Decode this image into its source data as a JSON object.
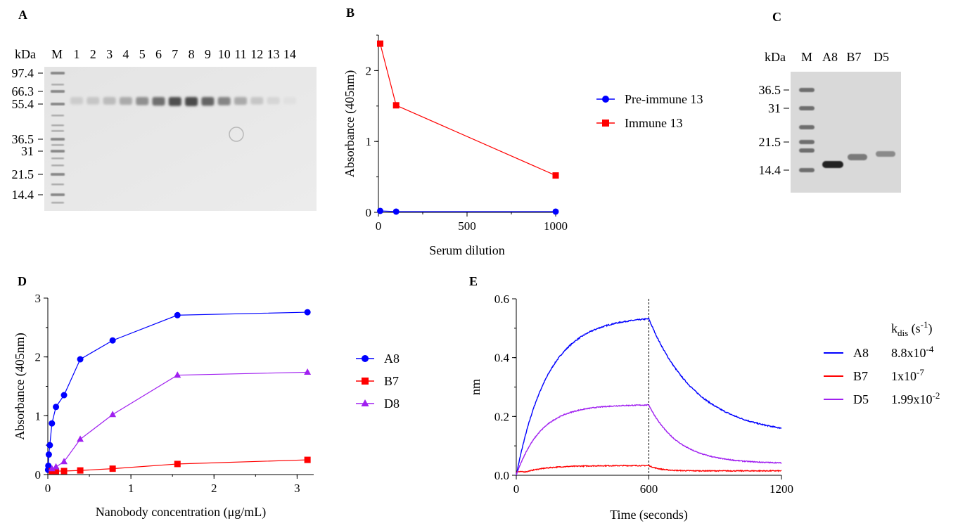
{
  "panel_labels": {
    "a": "A",
    "b": "B",
    "c": "C",
    "d": "D",
    "e": "E"
  },
  "gel_a": {
    "unit": "kDa",
    "marker_label": "M",
    "lanes": [
      "1",
      "2",
      "3",
      "4",
      "5",
      "6",
      "7",
      "8",
      "9",
      "10",
      "11",
      "12",
      "13",
      "14"
    ],
    "markers": [
      "97.4",
      "66.3",
      "55.4",
      "36.5",
      "31",
      "21.5",
      "14.4"
    ],
    "band_intensity": [
      0.12,
      0.15,
      0.2,
      0.28,
      0.4,
      0.55,
      0.7,
      0.72,
      0.6,
      0.45,
      0.28,
      0.15,
      0.08,
      0.03
    ]
  },
  "gel_c": {
    "unit": "kDa",
    "lanes": [
      "M",
      "A8",
      "B7",
      "D5"
    ],
    "markers": [
      "36.5",
      "31",
      "21.5",
      "14.4"
    ]
  },
  "chart_data": [
    {
      "id": "B",
      "type": "line",
      "xlabel": "Serum dilution",
      "ylabel": "Absorbance (405nm)",
      "xlim": [
        0,
        1000
      ],
      "ylim": [
        0,
        2.5
      ],
      "xticks": [
        "0",
        "500",
        "1000"
      ],
      "yticks": [
        "0",
        "1",
        "2"
      ],
      "legend_position": "right",
      "series": [
        {
          "name": "Pre-immune 13",
          "color": "#0000ff",
          "marker": "circle",
          "x": [
            10,
            100,
            1000
          ],
          "y": [
            0.02,
            0.01,
            0.01
          ]
        },
        {
          "name": "Immune 13",
          "color": "#ff0000",
          "marker": "square",
          "x": [
            10,
            100,
            1000
          ],
          "y": [
            2.38,
            1.51,
            0.52
          ]
        }
      ]
    },
    {
      "id": "D",
      "type": "line",
      "xlabel": "Nanobody concentration (μg/mL)",
      "ylabel": "Absorbance (405nm)",
      "xlim": [
        0,
        3.2
      ],
      "ylim": [
        0,
        3
      ],
      "xticks": [
        "0",
        "1",
        "2",
        "3"
      ],
      "yticks": [
        "0",
        "1",
        "2",
        "3"
      ],
      "legend_position": "right",
      "series": [
        {
          "name": "A8",
          "color": "#0000ff",
          "marker": "circle",
          "x": [
            0.003,
            0.006,
            0.012,
            0.024,
            0.049,
            0.098,
            0.195,
            0.39,
            0.78,
            1.56,
            3.125
          ],
          "y": [
            0.08,
            0.15,
            0.34,
            0.5,
            0.87,
            1.15,
            1.35,
            1.96,
            2.28,
            2.71,
            2.76
          ]
        },
        {
          "name": "B7",
          "color": "#ff0000",
          "marker": "square",
          "x": [
            0.049,
            0.098,
            0.195,
            0.39,
            0.78,
            1.56,
            3.125
          ],
          "y": [
            0.06,
            0.06,
            0.06,
            0.07,
            0.1,
            0.18,
            0.25
          ]
        },
        {
          "name": "D8",
          "color": "#a020f0",
          "marker": "triangle",
          "x": [
            0.049,
            0.098,
            0.195,
            0.39,
            0.78,
            1.56,
            3.125
          ],
          "y": [
            0.1,
            0.13,
            0.22,
            0.6,
            1.02,
            1.69,
            1.74
          ]
        }
      ]
    },
    {
      "id": "E",
      "type": "line",
      "xlabel": "Time (seconds)",
      "ylabel": "nm",
      "xlim": [
        0,
        1200
      ],
      "ylim": [
        0,
        0.6
      ],
      "xticks": [
        "0",
        "600",
        "1200"
      ],
      "yticks": [
        "0.0",
        "0.2",
        "0.4",
        "0.6"
      ],
      "vline_x": 600,
      "legend_position": "right",
      "legend_header_main": "k",
      "legend_header_sub": "dis",
      "legend_header_tail": " (s",
      "legend_header_sup": "-1",
      "legend_header_close": ")",
      "series": [
        {
          "name": "A8",
          "color": "#0000ff",
          "kdis_base": "8.8x10",
          "kdis_exp": "-4",
          "rmax": 0.54,
          "kobs": 0.007,
          "koff_plot": 0.0046,
          "plateau": 0.135,
          "noise": 0.004
        },
        {
          "name": "B7",
          "color": "#ff0000",
          "kdis_base": "1x10",
          "kdis_exp": "-7",
          "rmax": 0.033,
          "kobs": 0.01,
          "koff_plot": 0.02,
          "plateau": 0.015,
          "noise": 0.003
        },
        {
          "name": "D5",
          "color": "#a020f0",
          "kdis_base": "1.99x10",
          "kdis_exp": "-2",
          "rmax": 0.24,
          "kobs": 0.009,
          "koff_plot": 0.0075,
          "plateau": 0.04,
          "noise": 0.003
        }
      ]
    }
  ]
}
